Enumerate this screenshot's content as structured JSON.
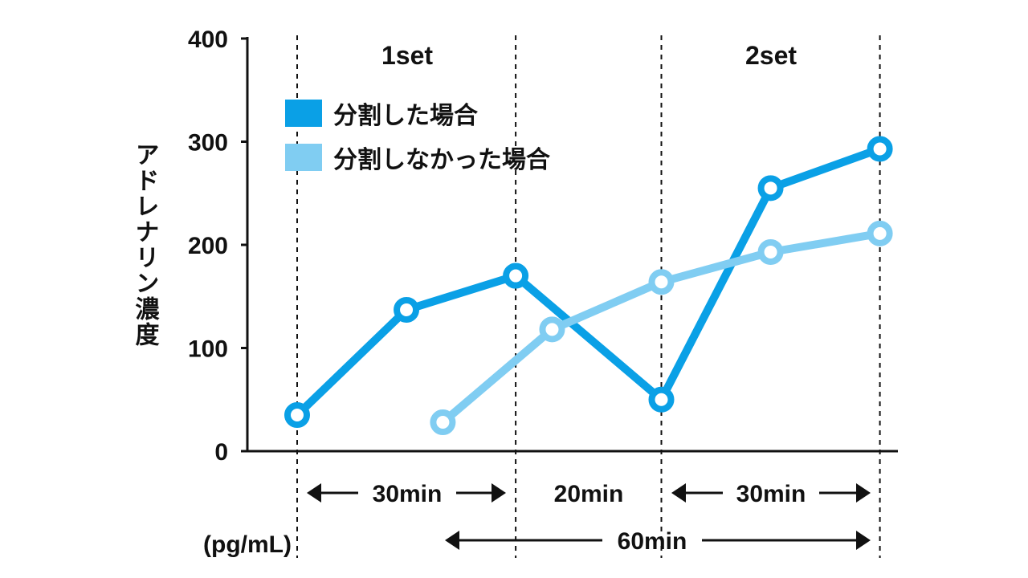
{
  "chart_data": {
    "type": "line",
    "ylabel": "アドレナリン濃度",
    "unit": "(pg/mL)",
    "ylim": [
      0,
      400
    ],
    "yticks": [
      "0",
      "100",
      "200",
      "300",
      "400"
    ],
    "set_labels": [
      "1set",
      "2set"
    ],
    "interval_labels": [
      "30min",
      "20min",
      "30min"
    ],
    "total_label": "60min",
    "legend_position": "top-left",
    "series": [
      {
        "name": "分割した場合",
        "color": "#0aa0e6",
        "points": [
          [
            0,
            35
          ],
          [
            15,
            137
          ],
          [
            30,
            170
          ],
          [
            50,
            50
          ],
          [
            65,
            255
          ],
          [
            80,
            293
          ]
        ]
      },
      {
        "name": "分割しなかった場合",
        "color": "#80cdf2",
        "points": [
          [
            20,
            28
          ],
          [
            35,
            118
          ],
          [
            50,
            164
          ],
          [
            65,
            193
          ],
          [
            80,
            211
          ]
        ]
      }
    ]
  }
}
